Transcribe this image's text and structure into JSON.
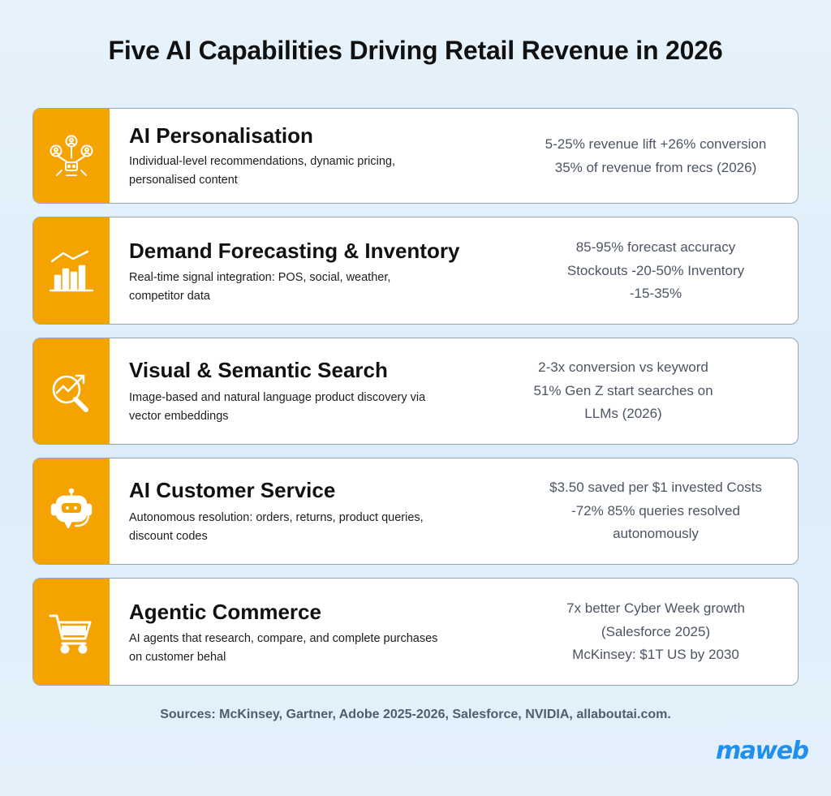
{
  "title": "Five AI Capabilities Driving Retail Revenue in 2026",
  "cards": [
    {
      "icon": "network-people-icon",
      "name": "AI Personalisation",
      "desc_lines": [
        "Individual-level recommendations, dynamic pricing,",
        "personalised content"
      ],
      "stat_lines": [
        "5-25% revenue lift +26% conversion",
        "35% of revenue from recs (2026)"
      ]
    },
    {
      "icon": "bar-chart-icon",
      "name": "Demand Forecasting & Inventory",
      "desc_lines": [
        "Real-time signal integration: POS, social, weather,",
        "competitor data"
      ],
      "stat_lines": [
        "85-95% forecast accuracy",
        "Stockouts -20-50% Inventory",
        "-15-35%"
      ]
    },
    {
      "icon": "search-trend-icon",
      "name": "Visual & Semantic Search",
      "desc_lines": [
        "Image-based and natural language product discovery via",
        "vector embeddings"
      ],
      "stat_lines": [
        "2-3x conversion vs keyword",
        "51% Gen Z start searches on",
        "LLMs (2026)"
      ]
    },
    {
      "icon": "robot-support-icon",
      "name": "AI Customer Service",
      "desc_lines": [
        "Autonomous resolution: orders, returns, product queries,",
        "discount codes"
      ],
      "stat_lines": [
        "$3.50 saved per $1 invested Costs",
        "-72% 85% queries resolved",
        "autonomously"
      ]
    },
    {
      "icon": "shopping-cart-icon",
      "name": "Agentic Commerce",
      "desc_lines": [
        "AI agents that research, compare, and complete purchases",
        "on customer behal"
      ],
      "stat_lines": [
        "7x better Cyber Week growth",
        "(Salesforce 2025)",
        "McKinsey: $1T US by 2030"
      ]
    }
  ],
  "sources": "Sources: McKinsey, Gartner, Adobe 2025-2026, Salesforce, NVIDIA, allaboutai.com.",
  "logo": "maweb",
  "colors": {
    "accent": "#f5a300",
    "logo": "#1f8ff0",
    "stats_text": "#4c5563"
  }
}
